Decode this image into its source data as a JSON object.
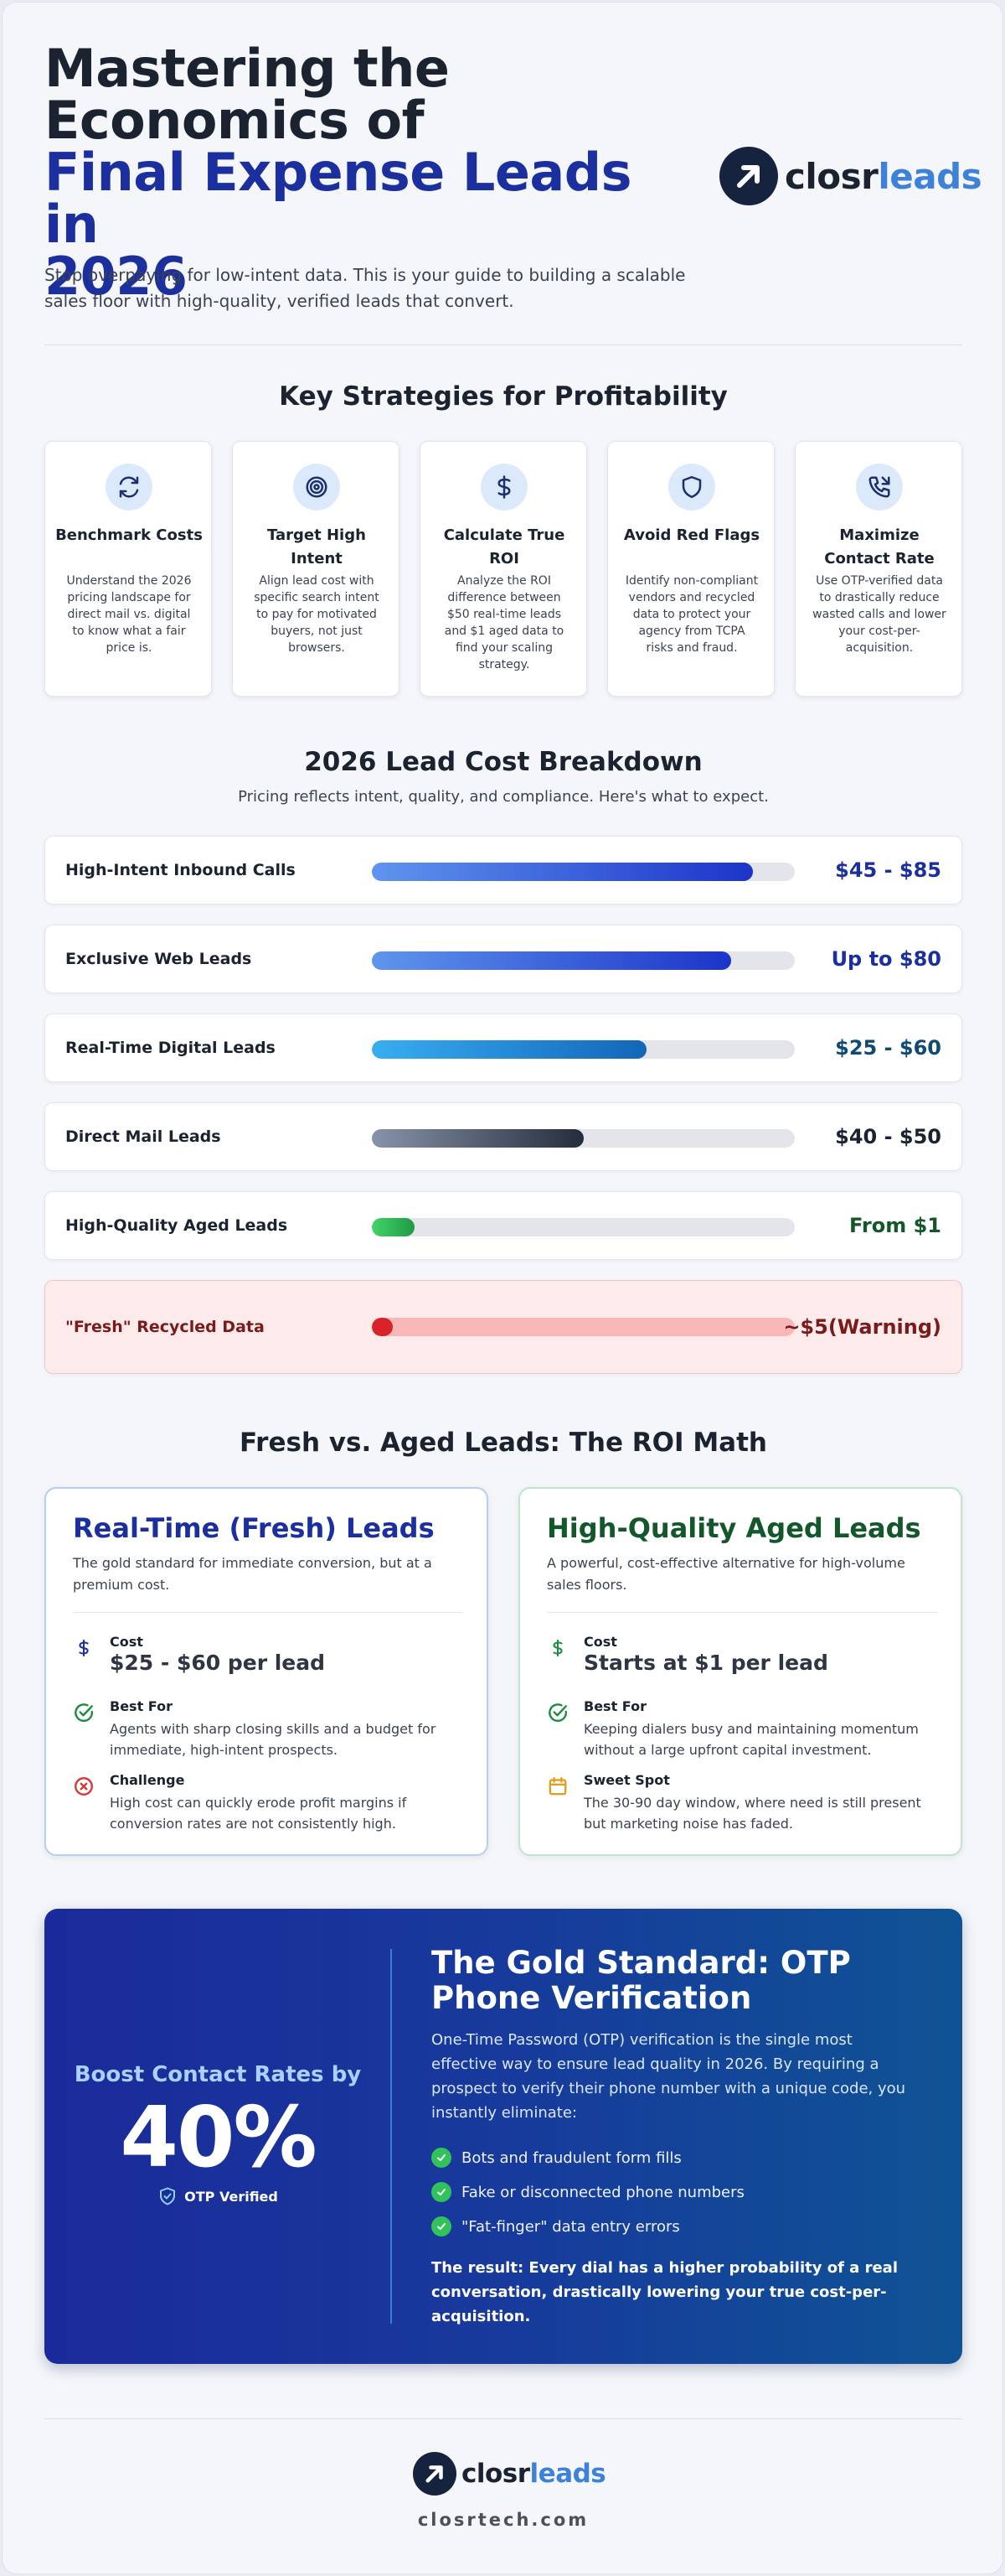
{
  "header": {
    "title_line1": "Mastering the",
    "title_line2": "Economics of",
    "title_line3": "Final Expense Leads in",
    "title_line4": "2026",
    "subtitle": "Stop overpaying for low-intent data. This is your guide to building a scalable sales floor with high-quality, verified leads that convert."
  },
  "brand": {
    "name_part1": "closr",
    "name_part2": "leads",
    "mark_color": "#16233f",
    "accent": "#3d82d8"
  },
  "strategies": {
    "title": "Key Strategies for Profitability",
    "cards": [
      {
        "icon": "refresh-arrows-icon",
        "title": "Benchmark Costs",
        "desc": "Understand the 2026 pricing landscape for direct mail vs. digital to know what a fair price is."
      },
      {
        "icon": "target-icon",
        "title": "Target High Intent",
        "desc": "Align lead cost with specific search intent to pay for motivated buyers, not just browsers."
      },
      {
        "icon": "dollar-icon",
        "title": "Calculate True ROI",
        "desc": "Analyze the ROI difference between $50 real-time leads and $1 aged data to find your scaling strategy."
      },
      {
        "icon": "shield-icon",
        "title": "Avoid Red Flags",
        "desc": "Identify non-compliant vendors and recycled data to protect your agency from TCPA risks and fraud."
      },
      {
        "icon": "phone-icon",
        "title": "Maximize Contact Rate",
        "desc": "Use OTP-verified data to drastically reduce wasted calls and lower your cost-per-acquisition."
      }
    ]
  },
  "costs": {
    "title": "2026 Lead Cost Breakdown",
    "subtitle": "Pricing reflects intent, quality, and compliance. Here's what to expect.",
    "rows": [
      {
        "label": "High-Intent Inbound Calls",
        "value": "$45 - $85",
        "level": 0.9,
        "color": "#1c2f9e"
      },
      {
        "label": "Exclusive Web Leads",
        "value": "Up to $80",
        "level": 0.85,
        "color": "#1c2f9e"
      },
      {
        "label": "Real-Time Digital Leads",
        "value": "$25 - $60",
        "level": 0.65,
        "color": "#0e4a73"
      },
      {
        "label": "Direct Mail Leads",
        "value": "$40 - $50",
        "level": 0.5,
        "color": "#1b2230"
      },
      {
        "label": "High-Quality Aged Leads",
        "value": "From $1",
        "level": 0.1,
        "color": "#14572b"
      },
      {
        "label": "\"Fresh\" Recycled Data",
        "value_line1": "~$5",
        "value_line2": "(Warning)",
        "level": 0.05,
        "color": "#7a1a1a"
      }
    ]
  },
  "compare": {
    "title": "Fresh vs. Aged Leads: The ROI Math",
    "fresh": {
      "title": "Real-Time (Fresh) Leads",
      "desc": "The gold standard for immediate conversion, but at a premium cost.",
      "cost_label": "Cost",
      "cost_value": "$25 - $60 per lead",
      "best_label": "Best For",
      "best_value": "Agents with sharp closing skills and a budget for immediate, high-intent prospects.",
      "third_label": "Challenge",
      "third_value": "High cost can quickly erode profit margins if conversion rates are not consistently high."
    },
    "aged": {
      "title": "High-Quality Aged Leads",
      "desc": "A powerful, cost-effective alternative for high-volume sales floors.",
      "cost_label": "Cost",
      "cost_value": "Starts at $1 per lead",
      "best_label": "Best For",
      "best_value": "Keeping dialers busy and maintaining momentum without a large upfront capital investment.",
      "third_label": "Sweet Spot",
      "third_value": "The 30-90 day window, where need is still present but marketing noise has faded."
    }
  },
  "otp": {
    "boost": "Boost Contact Rates by",
    "percent": "40%",
    "badge": "OTP Verified",
    "title_line1": "The Gold Standard: OTP",
    "title_line2": "Phone Verification",
    "desc": "One-Time Password (OTP) verification is the single most effective way to ensure lead quality in 2026. By requiring a prospect to verify their phone number with a unique code, you instantly eliminate:",
    "items": [
      "Bots and fraudulent form fills",
      "Fake or disconnected phone numbers",
      "\"Fat-finger\" data entry errors"
    ],
    "result": "The result: Every dial has a higher probability of a real conversation, drastically lowering your true cost-per-acquisition."
  },
  "footer": {
    "url": "closrtech.com"
  }
}
